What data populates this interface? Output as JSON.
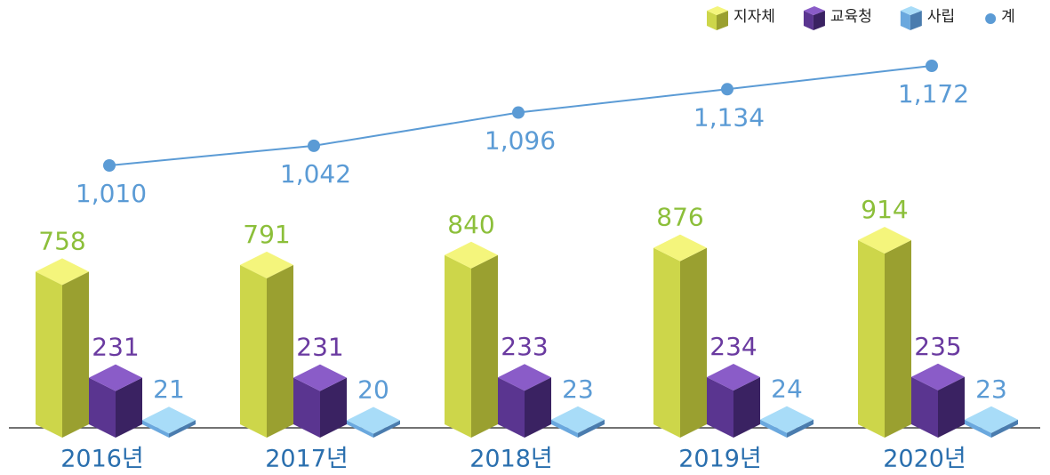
{
  "chart_data": {
    "type": "bar",
    "categories": [
      "2016년",
      "2017년",
      "2018년",
      "2019년",
      "2020년"
    ],
    "series": [
      {
        "name": "지자체",
        "color": "#cdd64a",
        "values": [
          758,
          791,
          840,
          876,
          914
        ]
      },
      {
        "name": "교육청",
        "color": "#5a3590",
        "values": [
          231,
          231,
          233,
          234,
          235
        ]
      },
      {
        "name": "사립",
        "color": "#6aa8de",
        "values": [
          21,
          20,
          23,
          24,
          23
        ]
      },
      {
        "name": "계",
        "type": "line",
        "color": "#5b9bd5",
        "values": [
          1010,
          1042,
          1096,
          1134,
          1172
        ],
        "value_labels": [
          "1,010",
          "1,042",
          "1,096",
          "1,134",
          "1,172"
        ]
      }
    ]
  }
}
